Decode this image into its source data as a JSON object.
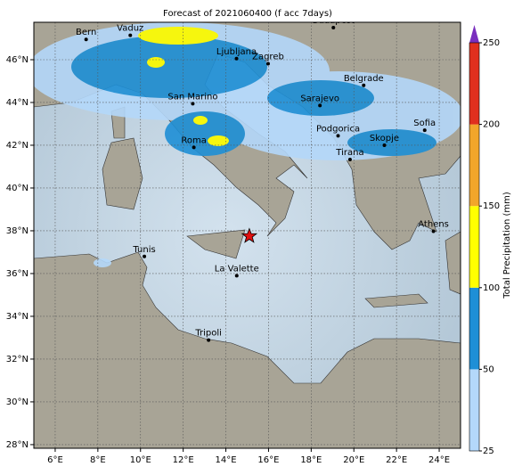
{
  "title": "Forecast of 2021060400 (f acc 7days)",
  "map": {
    "lon_range": [
      5,
      25
    ],
    "lat_range": [
      27.83,
      47.75
    ],
    "lon_ticks": [
      {
        "value": 6,
        "label": "6°E"
      },
      {
        "value": 8,
        "label": "8°E"
      },
      {
        "value": 10,
        "label": "10°E"
      },
      {
        "value": 12,
        "label": "12°E"
      },
      {
        "value": 14,
        "label": "14°E"
      },
      {
        "value": 16,
        "label": "16°E"
      },
      {
        "value": 18,
        "label": "18°E"
      },
      {
        "value": 20,
        "label": "20°E"
      },
      {
        "value": 22,
        "label": "22°E"
      },
      {
        "value": 24,
        "label": "24°E"
      }
    ],
    "lat_ticks": [
      {
        "value": 28,
        "label": "28°N"
      },
      {
        "value": 30,
        "label": "30°N"
      },
      {
        "value": 32,
        "label": "32°N"
      },
      {
        "value": 34,
        "label": "34°N"
      },
      {
        "value": 36,
        "label": "36°N"
      },
      {
        "value": 38,
        "label": "38°N"
      },
      {
        "value": 40,
        "label": "40°N"
      },
      {
        "value": 42,
        "label": "42°N"
      },
      {
        "value": 44,
        "label": "44°N"
      },
      {
        "value": 46,
        "label": "46°N"
      }
    ],
    "cities": [
      {
        "name": "Bern",
        "lon": 7.45,
        "lat": 46.95
      },
      {
        "name": "Vaduz",
        "lon": 9.52,
        "lat": 47.14
      },
      {
        "name": "Budapest",
        "lon": 19.04,
        "lat": 47.5
      },
      {
        "name": "Ljubljana",
        "lon": 14.5,
        "lat": 46.05
      },
      {
        "name": "Zagreb",
        "lon": 15.98,
        "lat": 45.81
      },
      {
        "name": "Belgrade",
        "lon": 20.46,
        "lat": 44.8
      },
      {
        "name": "San Marino",
        "lon": 12.45,
        "lat": 43.94
      },
      {
        "name": "Sarajevo",
        "lon": 18.41,
        "lat": 43.86
      },
      {
        "name": "Sofia",
        "lon": 23.32,
        "lat": 42.7
      },
      {
        "name": "Podgorica",
        "lon": 19.26,
        "lat": 42.44
      },
      {
        "name": "Skopje",
        "lon": 21.43,
        "lat": 42.0
      },
      {
        "name": "Roma",
        "lon": 12.5,
        "lat": 41.9
      },
      {
        "name": "Tirana",
        "lon": 19.82,
        "lat": 41.33
      },
      {
        "name": "Athens",
        "lon": 23.73,
        "lat": 37.98
      },
      {
        "name": "Tunis",
        "lon": 10.18,
        "lat": 36.8
      },
      {
        "name": "La Valette",
        "lon": 14.51,
        "lat": 35.9
      },
      {
        "name": "Tripoli",
        "lon": 13.19,
        "lat": 32.89
      }
    ],
    "marker": {
      "lon": 15.1,
      "lat": 37.75,
      "color": "#e01010"
    }
  },
  "colorbar": {
    "label": "Total Precipitation (mm)",
    "levels": [
      25,
      50,
      100,
      150,
      200,
      250
    ],
    "colors": [
      "#b4d8fa",
      "#1e8fd6",
      "#ffff00",
      "#f2a62a",
      "#e0301e"
    ],
    "extend_color": "#7a2fbe"
  }
}
